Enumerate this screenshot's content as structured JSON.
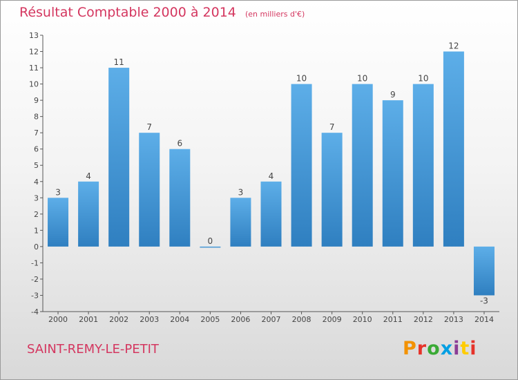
{
  "header": {
    "title": "Résultat Comptable 2000 à 2014",
    "subtitle": "(en milliers d'€)"
  },
  "footer": {
    "commune": "SAINT-REMY-LE-PETIT",
    "logo_text": "Proxiti"
  },
  "colors": {
    "bar_top": "#5daee8",
    "bar_bottom": "#2f7fc0",
    "title": "#d4365f",
    "logo": [
      "#f39200",
      "#e6332a",
      "#3aaa35",
      "#009fe3",
      "#8b3d96",
      "#ffcc00",
      "#e6332a"
    ]
  },
  "chart_data": {
    "type": "bar",
    "categories": [
      "2000",
      "2001",
      "2002",
      "2003",
      "2004",
      "2005",
      "2006",
      "2007",
      "2008",
      "2009",
      "2010",
      "2011",
      "2012",
      "2013",
      "2014"
    ],
    "values": [
      3,
      4,
      11,
      7,
      6,
      0,
      3,
      4,
      10,
      7,
      10,
      9,
      10,
      12,
      -3
    ],
    "ylim": [
      -4,
      13
    ],
    "yticks": [
      -4,
      -3,
      -2,
      -1,
      0,
      1,
      2,
      3,
      4,
      5,
      6,
      7,
      8,
      9,
      10,
      11,
      12,
      13
    ],
    "grid": false,
    "legend": "none"
  }
}
